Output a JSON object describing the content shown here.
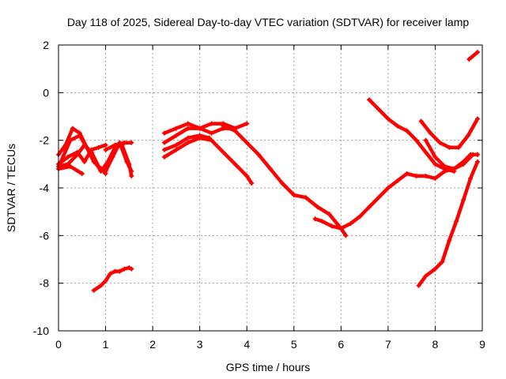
{
  "chart_data": {
    "type": "scatter",
    "title": "Day 118 of 2025, Sidereal Day-to-day VTEC variation (SDTVAR) for receiver lamp",
    "xlabel": "GPS time / hours",
    "ylabel": "SDTVAR / TECUs",
    "xlim": [
      0,
      9
    ],
    "ylim": [
      -10,
      2
    ],
    "xticks": [
      0,
      1,
      2,
      3,
      4,
      5,
      6,
      7,
      8,
      9
    ],
    "yticks": [
      2,
      0,
      -2,
      -4,
      -6,
      -8,
      -10
    ],
    "grid": true,
    "marker": "plus",
    "color": "#ff0000",
    "series": [
      {
        "name": "s1",
        "x": [
          0.0,
          0.15,
          0.3,
          0.45,
          0.6,
          0.75,
          0.9,
          1.0
        ],
        "y": [
          -2.6,
          -2.2,
          -1.5,
          -1.7,
          -2.3,
          -2.9,
          -3.2,
          -3.4
        ]
      },
      {
        "name": "s2",
        "x": [
          0.0,
          0.2,
          0.4,
          0.55,
          0.7,
          0.85,
          1.0
        ],
        "y": [
          -3.0,
          -2.7,
          -2.5,
          -2.9,
          -2.4,
          -2.3,
          -2.2
        ]
      },
      {
        "name": "s3",
        "x": [
          0.05,
          0.25,
          0.45,
          0.6,
          0.75,
          0.9,
          1.05,
          1.2,
          1.35,
          1.5,
          1.55
        ],
        "y": [
          -2.9,
          -2.0,
          -1.8,
          -2.3,
          -2.8,
          -3.3,
          -2.9,
          -2.3,
          -2.2,
          -3.0,
          -3.5
        ]
      },
      {
        "name": "s4",
        "x": [
          0.0,
          0.2,
          0.4,
          0.55,
          0.7,
          0.85,
          1.0,
          1.15,
          1.3,
          1.45,
          1.55
        ],
        "y": [
          -3.1,
          -3.0,
          -2.6,
          -2.2,
          -2.5,
          -3.1,
          -3.3,
          -2.7,
          -2.1,
          -2.9,
          -3.3
        ]
      },
      {
        "name": "s5",
        "x": [
          0.0,
          0.25,
          0.5
        ],
        "y": [
          -3.2,
          -3.1,
          -3.4
        ]
      },
      {
        "name": "s6",
        "x": [
          1.0,
          1.2,
          1.4,
          1.55
        ],
        "y": [
          -2.4,
          -2.2,
          -2.1,
          -2.1
        ]
      },
      {
        "name": "s7",
        "x": [
          0.75,
          0.9,
          1.0,
          1.1,
          1.2,
          1.3,
          1.4,
          1.5,
          1.55
        ],
        "y": [
          -8.3,
          -8.1,
          -7.9,
          -7.6,
          -7.5,
          -7.5,
          -7.4,
          -7.35,
          -7.4
        ]
      },
      {
        "name": "s8",
        "x": [
          2.25,
          2.5,
          2.75,
          3.0,
          3.25,
          3.5,
          3.75,
          4.0
        ],
        "y": [
          -1.7,
          -1.5,
          -1.3,
          -1.5,
          -1.7,
          -1.5,
          -1.5,
          -1.3
        ]
      },
      {
        "name": "s9",
        "x": [
          2.25,
          2.5,
          2.75,
          3.0,
          3.25,
          3.5,
          3.75
        ],
        "y": [
          -2.1,
          -1.8,
          -1.5,
          -1.5,
          -1.3,
          -1.3,
          -1.5
        ]
      },
      {
        "name": "s10",
        "x": [
          2.25,
          2.5,
          2.75,
          3.0,
          3.2
        ],
        "y": [
          -2.4,
          -2.2,
          -1.9,
          -1.8,
          -1.9
        ]
      },
      {
        "name": "s11",
        "x": [
          2.25,
          2.5,
          2.75,
          3.0,
          3.25,
          3.5,
          3.75,
          4.0,
          4.1
        ],
        "y": [
          -2.7,
          -2.4,
          -2.1,
          -1.9,
          -2.0,
          -2.5,
          -3.0,
          -3.5,
          -3.8
        ]
      },
      {
        "name": "s12",
        "x": [
          3.5,
          3.75,
          4.0,
          4.25,
          4.5,
          4.75,
          5.0,
          5.25,
          5.5,
          5.75,
          6.0,
          6.1
        ],
        "y": [
          -1.4,
          -1.6,
          -2.1,
          -2.6,
          -3.2,
          -3.8,
          -4.3,
          -4.4,
          -4.8,
          -5.1,
          -5.7,
          -6.0
        ]
      },
      {
        "name": "s13",
        "x": [
          5.45,
          5.6,
          5.8,
          6.0,
          6.2,
          6.4,
          6.6,
          6.8,
          7.0,
          7.2,
          7.4,
          7.6,
          7.8,
          8.0,
          8.2,
          8.4,
          8.6,
          8.8,
          8.9
        ],
        "y": [
          -5.3,
          -5.4,
          -5.6,
          -5.7,
          -5.5,
          -5.2,
          -4.8,
          -4.4,
          -4.0,
          -3.7,
          -3.4,
          -3.5,
          -3.5,
          -3.6,
          -3.3,
          -3.2,
          -3.0,
          -2.6,
          -2.6
        ]
      },
      {
        "name": "s14",
        "x": [
          6.6,
          6.8,
          7.0,
          7.2,
          7.4,
          7.6,
          7.8,
          8.0,
          8.2,
          8.4
        ],
        "y": [
          -0.3,
          -0.7,
          -1.1,
          -1.4,
          -1.6,
          -2.0,
          -2.5,
          -3.0,
          -3.2,
          -3.3
        ]
      },
      {
        "name": "s15",
        "x": [
          7.7,
          7.9,
          8.1,
          8.3,
          8.5,
          8.7,
          8.9
        ],
        "y": [
          -1.2,
          -1.7,
          -2.1,
          -2.3,
          -2.3,
          -1.8,
          -1.1
        ]
      },
      {
        "name": "s16",
        "x": [
          7.8,
          8.0,
          8.2,
          8.4,
          8.6,
          8.75,
          8.9
        ],
        "y": [
          -2.0,
          -2.7,
          -3.1,
          -3.2,
          -2.9,
          -2.6,
          -2.6
        ]
      },
      {
        "name": "s17",
        "x": [
          7.65,
          7.8,
          8.0,
          8.15,
          8.3,
          8.45,
          8.6,
          8.75,
          8.9
        ],
        "y": [
          -8.1,
          -7.7,
          -7.4,
          -7.1,
          -6.2,
          -5.4,
          -4.5,
          -3.6,
          -2.9
        ]
      },
      {
        "name": "s18",
        "x": [
          8.72,
          8.9
        ],
        "y": [
          1.4,
          1.7
        ]
      }
    ]
  }
}
